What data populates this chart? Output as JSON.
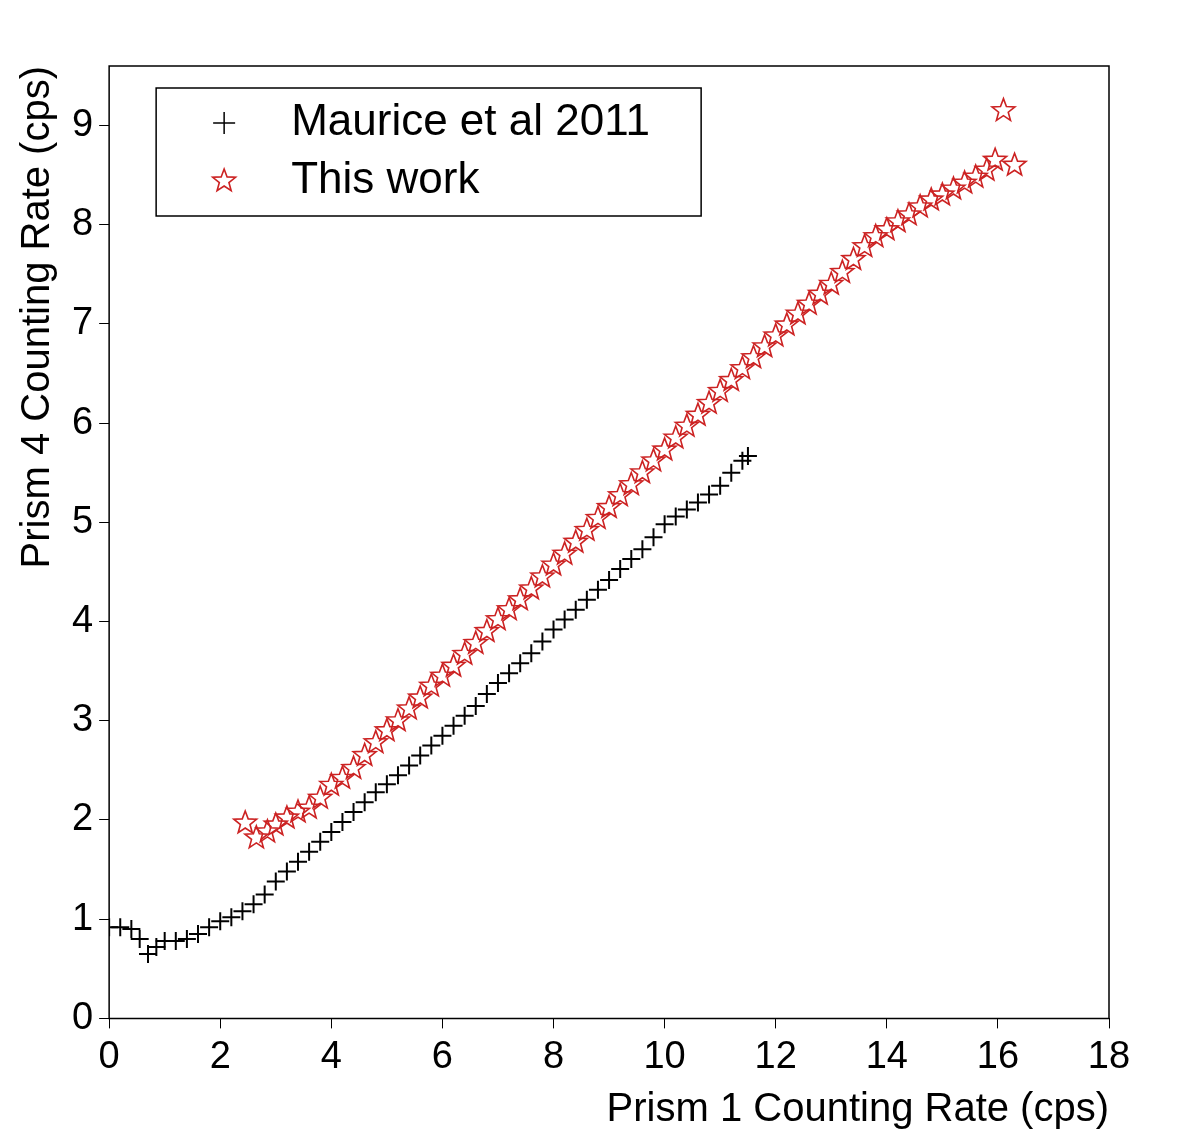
{
  "chart_data": {
    "type": "scatter",
    "xlabel": "Prism 1 Counting Rate (cps)",
    "ylabel": "Prism 4 Counting Rate (cps)",
    "xlim": [
      0,
      18
    ],
    "xticks": [
      0,
      2,
      4,
      6,
      8,
      10,
      12,
      14,
      16,
      18
    ],
    "ylim": [
      0,
      9.6
    ],
    "yticks": [
      0,
      1,
      2,
      3,
      4,
      5,
      6,
      7,
      8,
      9
    ],
    "grid": false,
    "legend": "top left",
    "series": [
      {
        "name": "Maurice et al 2011",
        "color": "#000000",
        "marker": "cross",
        "x": [
          0,
          0.2,
          0.4,
          0.55,
          0.7,
          0.85,
          1.0,
          1.2,
          1.4,
          1.6,
          1.8,
          2.0,
          2.2,
          2.4,
          2.6,
          2.8,
          3.0,
          3.2,
          3.4,
          3.6,
          3.8,
          4.0,
          4.2,
          4.4,
          4.6,
          4.8,
          5.0,
          5.2,
          5.4,
          5.6,
          5.8,
          6.0,
          6.2,
          6.4,
          6.6,
          6.8,
          7.0,
          7.2,
          7.4,
          7.6,
          7.8,
          8.0,
          8.2,
          8.4,
          8.6,
          8.8,
          9.0,
          9.2,
          9.4,
          9.6,
          9.8,
          10.0,
          10.2,
          10.4,
          10.6,
          10.8,
          11.0,
          11.2,
          11.4,
          11.5
        ],
        "values": [
          0.92,
          0.92,
          0.9,
          0.8,
          0.65,
          0.72,
          0.78,
          0.78,
          0.8,
          0.85,
          0.92,
          0.98,
          1.02,
          1.08,
          1.15,
          1.25,
          1.38,
          1.48,
          1.58,
          1.68,
          1.78,
          1.88,
          1.98,
          2.08,
          2.18,
          2.28,
          2.36,
          2.45,
          2.55,
          2.65,
          2.75,
          2.85,
          2.95,
          3.05,
          3.15,
          3.27,
          3.38,
          3.48,
          3.58,
          3.68,
          3.8,
          3.92,
          4.02,
          4.12,
          4.22,
          4.32,
          4.42,
          4.53,
          4.63,
          4.73,
          4.85,
          4.98,
          5.06,
          5.13,
          5.2,
          5.28,
          5.37,
          5.5,
          5.62,
          5.67
        ]
      },
      {
        "name": "This work",
        "color": "#cc2222",
        "marker": "star",
        "x": [
          2.45,
          2.65,
          2.85,
          3.0,
          3.2,
          3.4,
          3.6,
          3.8,
          4.0,
          4.2,
          4.4,
          4.6,
          4.8,
          5.0,
          5.2,
          5.4,
          5.6,
          5.8,
          6.0,
          6.2,
          6.4,
          6.6,
          6.8,
          7.0,
          7.2,
          7.4,
          7.6,
          7.8,
          8.0,
          8.2,
          8.4,
          8.6,
          8.8,
          9.0,
          9.2,
          9.4,
          9.6,
          9.8,
          10.0,
          10.2,
          10.4,
          10.6,
          10.8,
          11.0,
          11.2,
          11.4,
          11.6,
          11.8,
          12.0,
          12.2,
          12.4,
          12.6,
          12.8,
          13.0,
          13.2,
          13.4,
          13.6,
          13.8,
          14.0,
          14.2,
          14.4,
          14.6,
          14.8,
          15.0,
          15.2,
          15.4,
          15.6,
          15.8,
          15.95,
          16.1,
          16.3
        ],
        "values": [
          1.97,
          1.82,
          1.88,
          1.95,
          2.02,
          2.08,
          2.12,
          2.22,
          2.35,
          2.42,
          2.52,
          2.65,
          2.78,
          2.9,
          3.0,
          3.12,
          3.23,
          3.35,
          3.45,
          3.55,
          3.67,
          3.78,
          3.9,
          4.02,
          4.12,
          4.22,
          4.33,
          4.45,
          4.57,
          4.68,
          4.8,
          4.92,
          5.04,
          5.15,
          5.27,
          5.38,
          5.5,
          5.62,
          5.73,
          5.85,
          5.97,
          6.08,
          6.2,
          6.32,
          6.43,
          6.55,
          6.66,
          6.77,
          6.88,
          6.99,
          7.1,
          7.2,
          7.3,
          7.4,
          7.52,
          7.65,
          7.78,
          7.88,
          7.95,
          8.03,
          8.1,
          8.18,
          8.25,
          8.3,
          8.36,
          8.42,
          8.48,
          8.55,
          8.65,
          9.15,
          8.6
        ]
      }
    ]
  }
}
